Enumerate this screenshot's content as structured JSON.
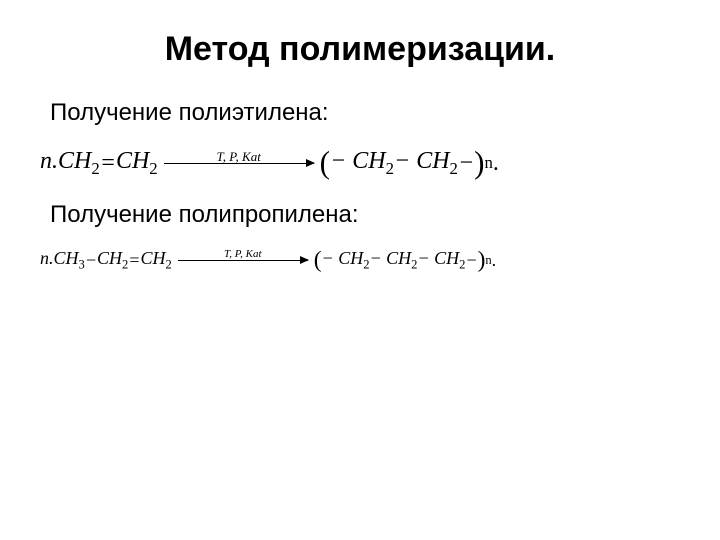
{
  "title": "Метод полимеризации.",
  "section1": {
    "subtitle": "Получение полиэтилена:",
    "equation": {
      "left": "n.CH",
      "left_sub1": "2",
      "eq_sign": " = ",
      "left2": "CH",
      "left_sub2": "2",
      "arrow_label": "T, P, Kat",
      "arrow_width_class": "arrow-w1",
      "open_paren": "(",
      "r1": "− CH",
      "r1_sub": "2",
      "r2": " − CH",
      "r2_sub": "2",
      "r3": " −",
      "close_paren": ")",
      "outer_sub": "n",
      "tail": " ."
    }
  },
  "section2": {
    "subtitle": "Получение полипропилена:",
    "equation": {
      "left": "n.CH",
      "left_sub1": "3",
      "dash1": " − ",
      "left2": "CH",
      "left_sub2": "2",
      "eq_sign": " = ",
      "left3": "CH",
      "left_sub3": "2",
      "arrow_label": "T, P, Kat",
      "arrow_width_class": "arrow-w2",
      "open_paren": "(",
      "r1": "− CH",
      "r1_sub": "2",
      "r2": " − CH",
      "r2_sub": "2",
      "r3": " − CH",
      "r3_sub": "2",
      "r4": " −",
      "close_paren": ")",
      "outer_sub": "n",
      "tail": " ."
    }
  },
  "colors": {
    "background": "#ffffff",
    "text": "#000000"
  },
  "fonts": {
    "title_size": 34,
    "subtitle_size": 24,
    "eq1_size": 24,
    "eq2_size": 18,
    "family_body": "Arial",
    "family_equation": "Times New Roman"
  }
}
